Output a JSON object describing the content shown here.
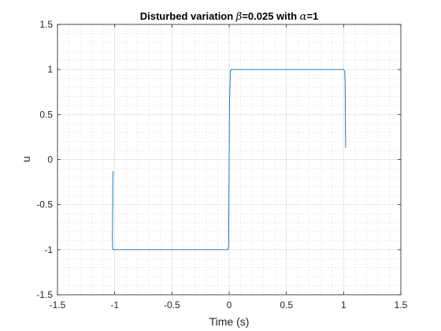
{
  "chart_data": {
    "type": "line",
    "title": {
      "text_1": "Disturbed variation ",
      "symbol_1": "β",
      "text_2": "=0.025 with ",
      "symbol_2": "α",
      "text_3": "=1"
    },
    "xlabel": "Time (s)",
    "ylabel": "u",
    "xlim": [
      -1.5,
      1.5
    ],
    "ylim": [
      -1.5,
      1.5
    ],
    "x_ticks": [
      -1.5,
      -1,
      -0.5,
      0,
      0.5,
      1,
      1.5
    ],
    "x_tick_labels": [
      "-1.5",
      "-1",
      "-0.5",
      "0",
      "0.5",
      "1",
      "1.5"
    ],
    "y_ticks": [
      -1.5,
      -1,
      -0.5,
      0,
      0.5,
      1,
      1.5
    ],
    "y_tick_labels": [
      "-1.5",
      "-1",
      "-0.5",
      "0",
      "0.5",
      "1",
      "1.5"
    ],
    "grid": true,
    "minor_grid": true,
    "series": [
      {
        "color": "#0072bd",
        "x": [
          -1.015,
          -1.017,
          -1.018,
          -1.02,
          -1.018,
          -1.015,
          -1.01,
          -1.0,
          -0.5,
          -0.01,
          -0.005,
          -0.003,
          -0.001,
          0.0,
          0.003,
          0.01,
          0.02,
          0.5,
          1.0,
          1.01,
          1.013,
          1.015,
          1.017,
          1.018
        ],
        "y": [
          -0.13,
          -0.3,
          -0.6,
          -0.85,
          -0.98,
          -1.0,
          -1.0,
          -1.0,
          -1.0,
          -1.0,
          -0.95,
          -0.6,
          -0.2,
          0.0,
          0.6,
          0.98,
          1.0,
          1.0,
          1.0,
          0.98,
          0.85,
          0.6,
          0.3,
          0.13
        ]
      }
    ]
  }
}
